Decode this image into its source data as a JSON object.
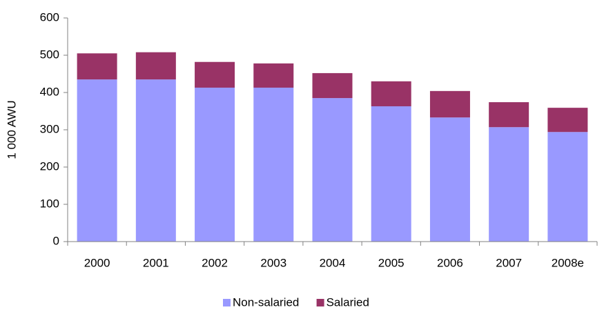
{
  "chart_data": {
    "type": "stacked_bar",
    "y_label": "1 000 AWU",
    "categories": [
      "2000",
      "2001",
      "2002",
      "2003",
      "2004",
      "2005",
      "2006",
      "2007",
      "2008e"
    ],
    "series": [
      {
        "name": "Non-salaried",
        "color": "#9999ff",
        "values": [
          435,
          435,
          413,
          413,
          385,
          363,
          333,
          307,
          294
        ]
      },
      {
        "name": "Salaried",
        "color": "#993366",
        "values": [
          70,
          73,
          69,
          65,
          67,
          67,
          71,
          67,
          65
        ]
      }
    ],
    "ylim": [
      0,
      600
    ],
    "yticks": [
      0,
      100,
      200,
      300,
      400,
      500,
      600
    ],
    "legend": "bottom"
  }
}
